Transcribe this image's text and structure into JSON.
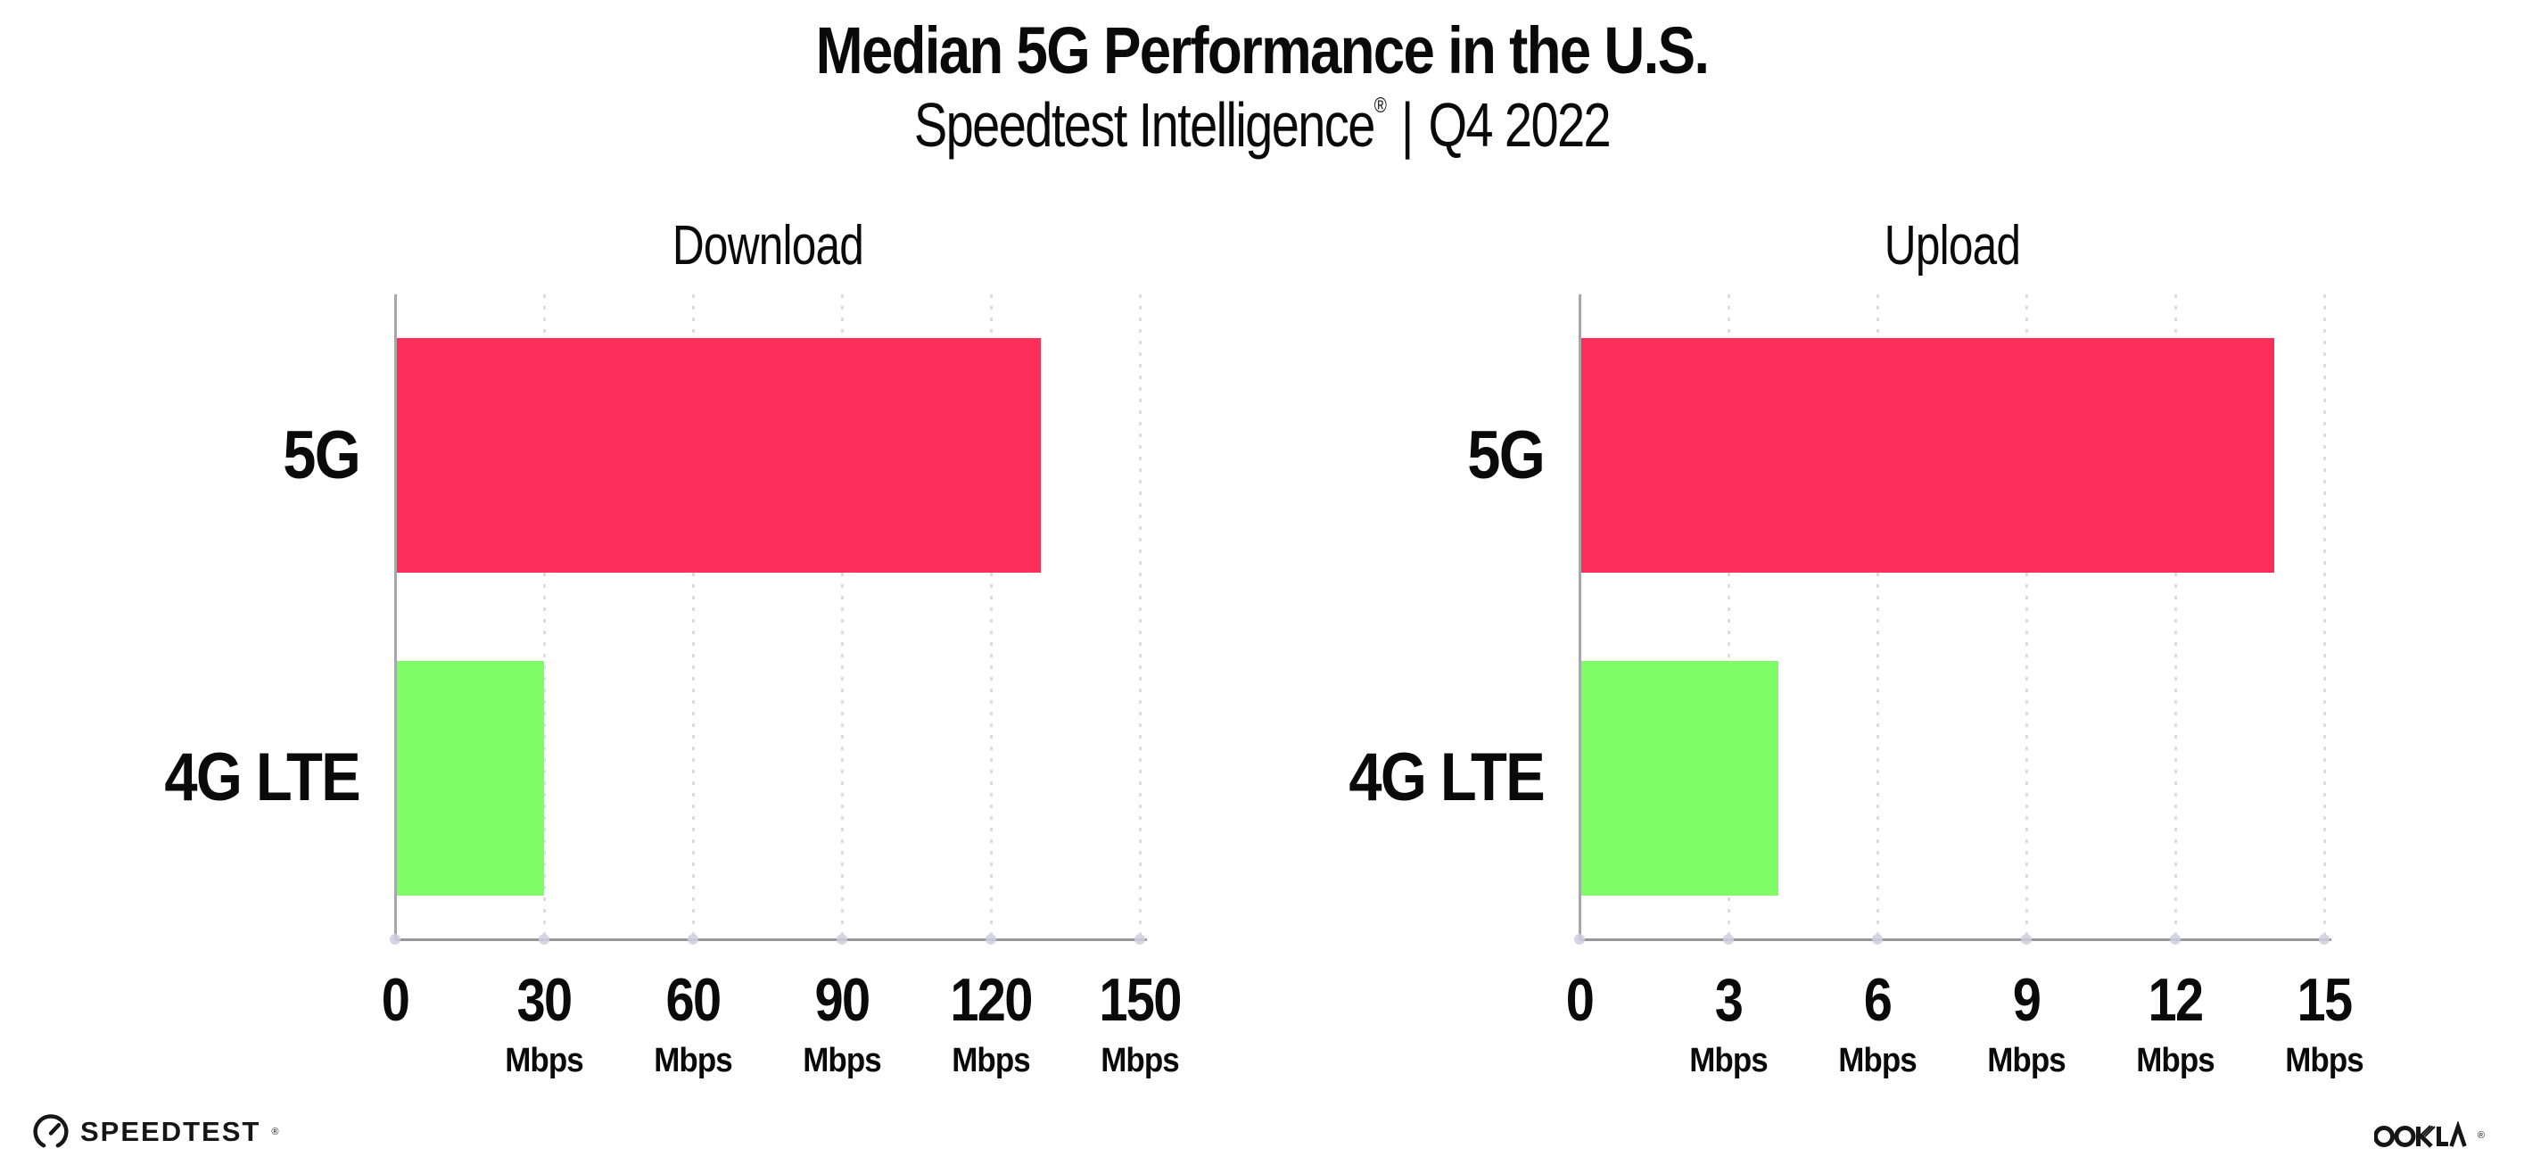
{
  "header": {
    "title": "Median 5G Performance in the U.S.",
    "subtitle_brand": "Speedtest Intelligence",
    "subtitle_registered": "®",
    "subtitle_separator": "|",
    "subtitle_period": "Q4 2022"
  },
  "colors": {
    "background": "#FFFFFF",
    "text": "#0A0A0A",
    "bar_5g": "#FD2E5A",
    "bar_4g_lte": "#7FFC66",
    "x_axis_line": "#97979C",
    "y_axis_line": "#A6A6AB",
    "gridline_dot": "#DCDCE6"
  },
  "chart_data": [
    {
      "type": "bar",
      "orientation": "horizontal",
      "title": "Download",
      "categories": [
        "5G",
        "4G LTE"
      ],
      "values": [
        130,
        30
      ],
      "unit": "Mbps",
      "xlim": [
        0,
        150
      ],
      "xticks": [
        0,
        30,
        60,
        90,
        120,
        150
      ],
      "tick_unit_label": "Mbps",
      "grid": "dotted-vertical-gridlines",
      "legend": "none",
      "bar_colors": [
        "#FD2E5A",
        "#7FFC66"
      ]
    },
    {
      "type": "bar",
      "orientation": "horizontal",
      "title": "Upload",
      "categories": [
        "5G",
        "4G LTE"
      ],
      "values": [
        14,
        4
      ],
      "unit": "Mbps",
      "xlim": [
        0,
        15
      ],
      "xticks": [
        0,
        3,
        6,
        9,
        12,
        15
      ],
      "tick_unit_label": "Mbps",
      "grid": "dotted-vertical-gridlines",
      "legend": "none",
      "bar_colors": [
        "#FD2E5A",
        "#7FFC66"
      ]
    }
  ],
  "footer": {
    "speedtest_label": "SPEEDTEST",
    "speedtest_mark": "®",
    "ookla_label": "OOKLA",
    "ookla_mark": "®"
  }
}
